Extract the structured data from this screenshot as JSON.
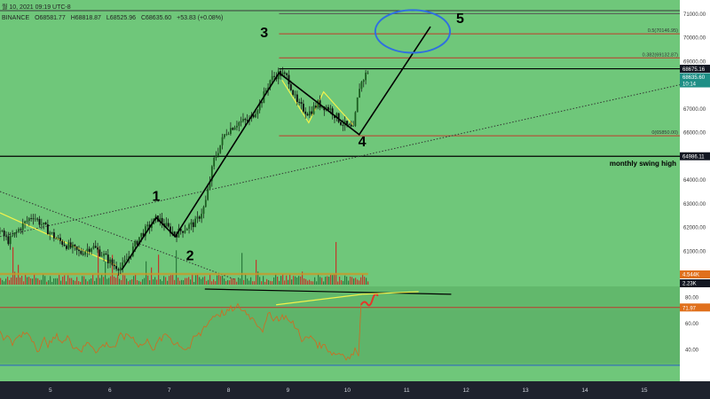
{
  "header": {
    "date_line": "월 10, 2021 09:19 UTC-8",
    "exchange": "BINANCE",
    "open": "O68581.77",
    "high": "H68818.87",
    "low": "L68525.96",
    "close": "C68635.60",
    "change": "+53.83 (+0.08%)"
  },
  "colors": {
    "background": "#6fc77a",
    "price_line_color": "#000000",
    "fib_line_color": "#c0392b",
    "rsi_line_color": "#d2691e",
    "trend_dot_color": "#333333",
    "yellow_line_color": "#f2f24c",
    "wave_circle_color": "#2f6fe0",
    "axis_bg": "#ffffff"
  },
  "chart_data": {
    "type": "candlestick",
    "price_axis": {
      "ylim": [
        59500,
        71200
      ],
      "ticks": [
        60000,
        61000,
        62000,
        63000,
        64000,
        65000,
        66000,
        67000,
        68000,
        69000,
        70000,
        71000
      ],
      "tick_labels": [
        "60000.00",
        "61000.00",
        "62000.00",
        "63000.00",
        "64000.00",
        "65000.00",
        "66000.00",
        "67000.00",
        "68000.00",
        "69000.00",
        "70000.00",
        "71000.00"
      ]
    },
    "x_axis": {
      "xlim": [
        4.15,
        15.6
      ],
      "ticks": [
        5,
        6,
        7,
        8,
        9,
        10,
        11,
        12,
        13,
        14,
        15
      ],
      "tick_labels": [
        "5",
        "6",
        "7",
        "8",
        "9",
        "10",
        "11",
        "12",
        "13",
        "14",
        "15"
      ]
    },
    "price_path": [
      [
        4.15,
        61.8
      ],
      [
        4.3,
        61.4
      ],
      [
        4.5,
        62.0
      ],
      [
        4.7,
        62.5
      ],
      [
        4.9,
        62.0
      ],
      [
        5.1,
        61.5
      ],
      [
        5.3,
        61.2
      ],
      [
        5.5,
        60.9
      ],
      [
        5.7,
        61.2
      ],
      [
        5.9,
        60.8
      ],
      [
        6.05,
        60.4
      ],
      [
        6.2,
        60.3
      ],
      [
        6.35,
        60.9
      ],
      [
        6.5,
        61.6
      ],
      [
        6.65,
        62.0
      ],
      [
        6.8,
        62.4
      ],
      [
        7.0,
        61.9
      ],
      [
        7.1,
        61.7
      ],
      [
        7.3,
        62.0
      ],
      [
        7.45,
        62.2
      ],
      [
        7.6,
        62.9
      ],
      [
        7.75,
        64.8
      ],
      [
        7.95,
        66.0
      ],
      [
        8.15,
        66.4
      ],
      [
        8.35,
        66.5
      ],
      [
        8.55,
        67.3
      ],
      [
        8.7,
        68.2
      ],
      [
        8.85,
        68.5
      ],
      [
        9.0,
        68.3
      ],
      [
        9.15,
        67.2
      ],
      [
        9.35,
        66.8
      ],
      [
        9.5,
        67.2
      ],
      [
        9.7,
        67.0
      ],
      [
        9.9,
        66.4
      ],
      [
        10.1,
        66.1
      ],
      [
        10.2,
        67.9
      ],
      [
        10.3,
        68.4
      ],
      [
        10.35,
        68.6
      ]
    ],
    "fib_levels": [
      {
        "label": "0.5(70146.95)",
        "value": 70146.95
      },
      {
        "label": "0.382(69132.87)",
        "value": 69132.87
      },
      {
        "label": "0(65850.00)",
        "value": 65850.0
      }
    ],
    "horizontal_levels": [
      {
        "name": "current",
        "value": 68675.16,
        "label": "68675.16"
      },
      {
        "name": "monthly_swing_high",
        "value": 64986.11,
        "label": "64986.11",
        "text": "monthly swing high"
      }
    ],
    "price_badges": [
      {
        "text": "68675.16",
        "style": "dark"
      },
      {
        "text": "68635.60",
        "style": "teal"
      },
      {
        "text": "10:14",
        "style": "teal"
      }
    ],
    "wave_labels": [
      {
        "text": "1",
        "x": 6.78,
        "y": 63.1
      },
      {
        "text": "2",
        "x": 7.35,
        "y": 60.6
      },
      {
        "text": "3",
        "x": 8.6,
        "y": 70.0
      },
      {
        "text": "4",
        "x": 10.25,
        "y": 65.4
      },
      {
        "text": "5",
        "x": 11.9,
        "y": 70.6
      }
    ],
    "wave_path": [
      [
        6.2,
        60.2
      ],
      [
        6.78,
        62.4
      ],
      [
        7.1,
        61.6
      ],
      [
        8.85,
        68.5
      ],
      [
        10.2,
        65.9
      ],
      [
        11.4,
        70.45
      ]
    ],
    "wave_circle": {
      "cx": 11.1,
      "cy": 70.25,
      "rx_days": 0.63,
      "ry_k": 0.9
    },
    "volume": {
      "badges": [
        {
          "text": "4.544K",
          "style": "orange"
        },
        {
          "text": "2.23K",
          "style": "dark"
        }
      ]
    },
    "rsi": {
      "ylim": [
        28,
        88
      ],
      "ticks": [
        40,
        60,
        80
      ],
      "tick_labels": [
        "40.00",
        "60.00",
        "80.00"
      ],
      "current": 71.97,
      "current_label": "71.97"
    },
    "annotations": {
      "monthly_swing_high": "monthly swing high"
    }
  }
}
